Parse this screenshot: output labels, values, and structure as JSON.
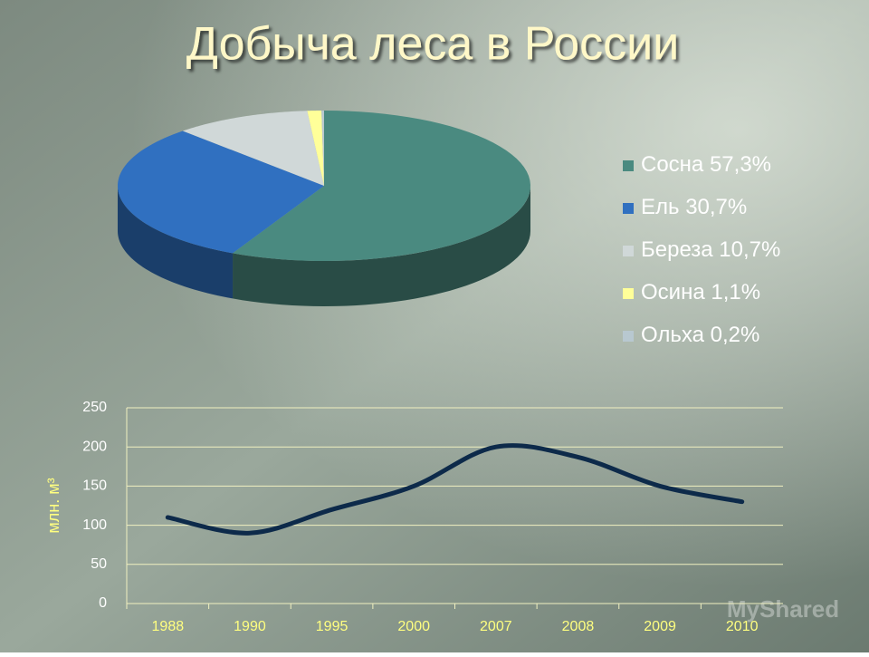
{
  "title": "Добыча леса в России",
  "watermark": "MyShared",
  "chart_data": [
    {
      "type": "pie",
      "categories": [
        "Сосна",
        "Ель",
        "Береза",
        "Осина",
        "Ольха"
      ],
      "values": [
        57.3,
        30.7,
        10.7,
        1.1,
        0.2
      ],
      "value_labels": [
        "57,3%",
        "30,7%",
        "10,7%",
        "1,1%",
        "0,2%"
      ],
      "colors": [
        "#4a8a80",
        "#3070c0",
        "#d0d8d8",
        "#ffff99",
        "#b8c8d0"
      ],
      "legend": "right"
    },
    {
      "type": "line",
      "y_label": "млн. м³",
      "categories": [
        "1988",
        "1990",
        "1995",
        "2000",
        "2007",
        "2008",
        "2009",
        "2010"
      ],
      "series": [
        {
          "color": "#0d2a4a",
          "values": [
            110,
            90,
            120,
            150,
            200,
            187,
            150,
            130
          ]
        }
      ],
      "ylim": [
        0,
        250
      ],
      "yticks": [
        0,
        50,
        100,
        150,
        200,
        250
      ],
      "grid": true
    }
  ]
}
